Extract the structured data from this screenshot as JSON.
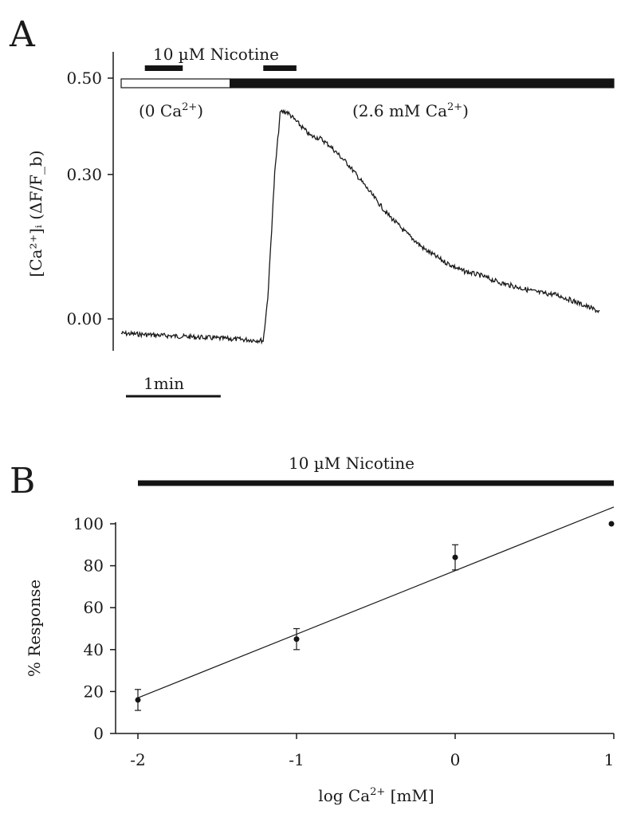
{
  "panel_a": {
    "letter": "A",
    "nicotine_label": "10 µM Nicotine",
    "zero_ca_label_main": "(0 Ca",
    "zero_ca_sup": "2+",
    "zero_ca_close": ")",
    "high_ca_label_main": "(2.6 mM Ca",
    "high_ca_sup": "2+",
    "high_ca_close": ")",
    "scale_label": "1min",
    "ylabel": "[Ca²⁺]ᵢ (ΔF/F_b)",
    "colors": {
      "trace": "#1a1a1a",
      "zero_ca_bar": "#ffffff",
      "high_ca_bar": "#141414"
    }
  },
  "panel_b": {
    "letter": "B",
    "nicotine_label": "10 µM Nicotine",
    "ylabel": "% Response",
    "xlabel_main": "log Ca",
    "xlabel_sup": "2+",
    "xlabel_unit": " [mM]"
  },
  "chart_data": [
    {
      "type": "line",
      "title": "",
      "ylabel": "[Ca²⁺]ᵢ (ΔF/F_b)",
      "yticks": [
        "0.00",
        "0.30",
        "0.50"
      ],
      "ylim": [
        -0.07,
        0.55
      ],
      "x_unit": "min",
      "xlim": [
        0,
        5.2
      ],
      "scale_bar": {
        "length_min": 1,
        "label": "1min"
      },
      "bars": [
        {
          "label": "10 µM Nicotine",
          "start_min": 0.25,
          "end_min": 0.65
        },
        {
          "label": "10 µM Nicotine",
          "start_min": 1.5,
          "end_min": 1.85
        }
      ],
      "conditions": [
        {
          "label": "(0 Ca2+)",
          "start_min": 0,
          "end_min": 1.15
        },
        {
          "label": "(2.6 mM Ca2+)",
          "start_min": 1.15,
          "end_min": 5.2
        }
      ],
      "trace": {
        "x": [
          0,
          0.5,
          1.0,
          1.5,
          1.55,
          1.62,
          1.68,
          1.75,
          1.85,
          2.0,
          2.1,
          2.2,
          2.4,
          2.6,
          2.8,
          3.0,
          3.2,
          3.4,
          3.6,
          3.8,
          4.0,
          4.2,
          4.4,
          4.6,
          4.8,
          5.05
        ],
        "y": [
          -0.03,
          -0.035,
          -0.04,
          -0.045,
          0.05,
          0.3,
          0.43,
          0.43,
          0.41,
          0.38,
          0.375,
          0.36,
          0.32,
          0.27,
          0.22,
          0.18,
          0.145,
          0.12,
          0.1,
          0.09,
          0.075,
          0.065,
          0.055,
          0.05,
          0.035,
          0.015
        ]
      }
    },
    {
      "type": "scatter",
      "title": "",
      "xlabel": "log Ca2+ [mM]",
      "ylabel": "% Response",
      "x": [
        -2,
        -1,
        0,
        1
      ],
      "y": [
        16,
        45,
        84,
        100
      ],
      "error": [
        5,
        5,
        6,
        0
      ],
      "xticks": [
        "-2",
        "-1",
        "0",
        "1"
      ],
      "yticks": [
        "0",
        "20",
        "40",
        "60",
        "80",
        "100"
      ],
      "xlim": [
        -2,
        1
      ],
      "ylim": [
        0,
        100
      ],
      "fit_line": {
        "x": [
          -2,
          1
        ],
        "y": [
          17,
          108
        ]
      },
      "bar": {
        "label": "10 µM Nicotine",
        "x_start": -2,
        "x_end": 1
      }
    }
  ]
}
